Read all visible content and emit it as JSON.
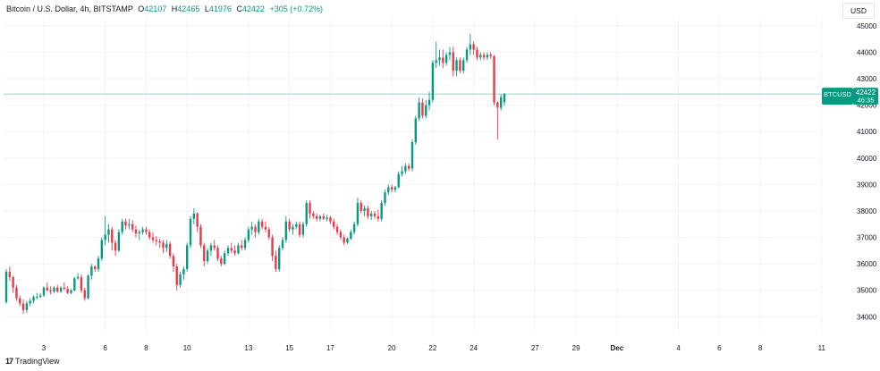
{
  "header": {
    "symbol_title": "Bitcoin / U.S. Dollar, 4h, BITSTAMP",
    "open_key": "O",
    "open_val": "42107",
    "high_key": "H",
    "high_val": "42465",
    "low_key": "L",
    "low_val": "41976",
    "close_key": "C",
    "close_val": "42422",
    "change": "+305 (+0.72%)",
    "currency_button": "USD"
  },
  "price_tag": {
    "symbol": "BTCUSD",
    "price": "42422",
    "countdown": "46:35"
  },
  "footer": {
    "brand": "TradingView",
    "logo_mark": "17"
  },
  "colors": {
    "up": "#089981",
    "down": "#f23645",
    "grid": "#f0f3fa",
    "axis_text": "#131722",
    "last_price_line": "#089981"
  },
  "chart_data": {
    "type": "candlestick",
    "title": "Bitcoin / U.S. Dollar, 4h, BITSTAMP",
    "ylim": [
      33400,
      45300
    ],
    "y_ticks": [
      34000,
      35000,
      36000,
      37000,
      38000,
      39000,
      40000,
      41000,
      42000,
      43000,
      44000,
      45000
    ],
    "x_ticks": [
      {
        "label": "3",
        "index": 11
      },
      {
        "label": "6",
        "index": 29
      },
      {
        "label": "8",
        "index": 41
      },
      {
        "label": "10",
        "index": 53
      },
      {
        "label": "13",
        "index": 71
      },
      {
        "label": "15",
        "index": 83
      },
      {
        "label": "17",
        "index": 95
      },
      {
        "label": "20",
        "index": 113
      },
      {
        "label": "22",
        "index": 125
      },
      {
        "label": "24",
        "index": 137
      },
      {
        "label": "27",
        "index": 155
      },
      {
        "label": "29",
        "index": 167
      },
      {
        "label": "Dec",
        "index": 179
      },
      {
        "label": "4",
        "index": 197
      },
      {
        "label": "6",
        "index": 209
      },
      {
        "label": "8",
        "index": 221
      },
      {
        "label": "11",
        "index": 239
      }
    ],
    "last_price": 42422,
    "candles": [
      [
        34550,
        35800,
        34500,
        35700
      ],
      [
        35700,
        35900,
        35350,
        35500
      ],
      [
        35500,
        35550,
        34900,
        35100
      ],
      [
        35100,
        35200,
        34600,
        34700
      ],
      [
        34700,
        34800,
        34400,
        34500
      ],
      [
        34500,
        34650,
        34100,
        34250
      ],
      [
        34250,
        34600,
        34150,
        34500
      ],
      [
        34500,
        34700,
        34400,
        34600
      ],
      [
        34600,
        34800,
        34500,
        34750
      ],
      [
        34750,
        34900,
        34650,
        34750
      ],
      [
        34750,
        34900,
        34700,
        34800
      ],
      [
        34800,
        35150,
        34750,
        35100
      ],
      [
        35100,
        35300,
        34950,
        35000
      ],
      [
        35000,
        35150,
        34850,
        34950
      ],
      [
        34950,
        35150,
        34900,
        35100
      ],
      [
        35100,
        35200,
        34900,
        34950
      ],
      [
        34950,
        35150,
        34900,
        35100
      ],
      [
        35100,
        35300,
        35000,
        35050
      ],
      [
        35050,
        35150,
        34850,
        34900
      ],
      [
        34900,
        35050,
        34850,
        35000
      ],
      [
        35000,
        35500,
        34950,
        35450
      ],
      [
        35450,
        35650,
        35400,
        35500
      ],
      [
        35500,
        35600,
        34900,
        35000
      ],
      [
        35000,
        35100,
        34600,
        34700
      ],
      [
        34700,
        35600,
        34650,
        35550
      ],
      [
        35550,
        36000,
        35400,
        35900
      ],
      [
        35900,
        35950,
        35700,
        35800
      ],
      [
        35800,
        36300,
        35700,
        36200
      ],
      [
        36200,
        37000,
        36100,
        36900
      ],
      [
        36900,
        37800,
        36700,
        37100
      ],
      [
        37100,
        37500,
        36800,
        37300
      ],
      [
        37300,
        37400,
        36500,
        36800
      ],
      [
        36800,
        36900,
        36300,
        36500
      ],
      [
        36500,
        37300,
        36450,
        37200
      ],
      [
        37200,
        37700,
        37100,
        37600
      ],
      [
        37600,
        37700,
        37300,
        37450
      ],
      [
        37450,
        37700,
        37300,
        37500
      ],
      [
        37500,
        37650,
        37200,
        37300
      ],
      [
        37300,
        37450,
        37000,
        37150
      ],
      [
        37150,
        37300,
        36900,
        37200
      ],
      [
        37200,
        37400,
        37100,
        37300
      ],
      [
        37300,
        37400,
        37100,
        37200
      ],
      [
        37200,
        37300,
        36900,
        37000
      ],
      [
        37000,
        37200,
        36800,
        36900
      ],
      [
        36900,
        37050,
        36700,
        36850
      ],
      [
        36850,
        36950,
        36600,
        36800
      ],
      [
        36800,
        36900,
        36400,
        36600
      ],
      [
        36600,
        36900,
        36450,
        36750
      ],
      [
        36750,
        36850,
        36200,
        36300
      ],
      [
        36300,
        36400,
        35700,
        35900
      ],
      [
        35900,
        36000,
        35000,
        35200
      ],
      [
        35200,
        35700,
        35100,
        35600
      ],
      [
        35600,
        35900,
        35400,
        35800
      ],
      [
        35800,
        36800,
        35700,
        36700
      ],
      [
        36700,
        37800,
        36600,
        37700
      ],
      [
        37700,
        38100,
        37500,
        37900
      ],
      [
        37900,
        37950,
        37200,
        37400
      ],
      [
        37400,
        37500,
        36600,
        36700
      ],
      [
        36700,
        36800,
        35900,
        36100
      ],
      [
        36100,
        36600,
        36000,
        36500
      ],
      [
        36500,
        36800,
        36300,
        36700
      ],
      [
        36700,
        36900,
        36500,
        36600
      ],
      [
        36600,
        36700,
        36100,
        36200
      ],
      [
        36200,
        36300,
        35900,
        36000
      ],
      [
        36000,
        36500,
        35950,
        36400
      ],
      [
        36400,
        36700,
        36300,
        36600
      ],
      [
        36600,
        36800,
        36400,
        36500
      ],
      [
        36500,
        36700,
        36300,
        36400
      ],
      [
        36400,
        36800,
        36350,
        36700
      ],
      [
        36700,
        36900,
        36500,
        36600
      ],
      [
        36600,
        37000,
        36500,
        36900
      ],
      [
        36900,
        37400,
        36800,
        37300
      ],
      [
        37300,
        37600,
        37100,
        37400
      ],
      [
        37400,
        37500,
        37000,
        37200
      ],
      [
        37200,
        37700,
        37100,
        37600
      ],
      [
        37600,
        37700,
        37300,
        37400
      ],
      [
        37400,
        37600,
        37200,
        37300
      ],
      [
        37300,
        37400,
        36900,
        37000
      ],
      [
        37000,
        37100,
        36100,
        36300
      ],
      [
        36300,
        36500,
        35700,
        35800
      ],
      [
        35800,
        36700,
        35700,
        36600
      ],
      [
        36600,
        37000,
        36500,
        36900
      ],
      [
        36900,
        37800,
        36800,
        37600
      ],
      [
        37600,
        37700,
        37200,
        37300
      ],
      [
        37300,
        37500,
        37100,
        37400
      ],
      [
        37400,
        37600,
        37300,
        37500
      ],
      [
        37500,
        37600,
        37000,
        37100
      ],
      [
        37100,
        37600,
        37000,
        37500
      ],
      [
        37500,
        38400,
        37400,
        38300
      ],
      [
        38300,
        38400,
        37700,
        37900
      ],
      [
        37900,
        38000,
        37700,
        37800
      ],
      [
        37800,
        37900,
        37600,
        37700
      ],
      [
        37700,
        37850,
        37600,
        37800
      ],
      [
        37800,
        37900,
        37650,
        37700
      ],
      [
        37700,
        37850,
        37600,
        37750
      ],
      [
        37750,
        37800,
        37500,
        37600
      ],
      [
        37600,
        37700,
        37300,
        37400
      ],
      [
        37400,
        37500,
        37100,
        37200
      ],
      [
        37200,
        37300,
        36900,
        37000
      ],
      [
        37000,
        37100,
        36700,
        36800
      ],
      [
        36800,
        37000,
        36750,
        36950
      ],
      [
        36950,
        37300,
        36900,
        37200
      ],
      [
        37200,
        37600,
        37100,
        37500
      ],
      [
        37500,
        38500,
        37400,
        38300
      ],
      [
        38300,
        38400,
        37900,
        38000
      ],
      [
        38000,
        38200,
        37800,
        38100
      ],
      [
        38100,
        38200,
        37700,
        37800
      ],
      [
        37800,
        38000,
        37650,
        37900
      ],
      [
        37900,
        38000,
        37700,
        37800
      ],
      [
        37800,
        38050,
        37600,
        37700
      ],
      [
        37700,
        38400,
        37600,
        38300
      ],
      [
        38300,
        38800,
        38200,
        38700
      ],
      [
        38700,
        39000,
        38600,
        38900
      ],
      [
        38900,
        39000,
        38700,
        38800
      ],
      [
        38800,
        38950,
        38700,
        38900
      ],
      [
        38900,
        39500,
        38850,
        39400
      ],
      [
        39400,
        39700,
        39300,
        39500
      ],
      [
        39500,
        39800,
        39400,
        39700
      ],
      [
        39700,
        39800,
        39500,
        39600
      ],
      [
        39600,
        40700,
        39500,
        40600
      ],
      [
        40600,
        41600,
        40500,
        41500
      ],
      [
        41500,
        42300,
        41400,
        42100
      ],
      [
        42100,
        42250,
        41500,
        41600
      ],
      [
        41600,
        42200,
        41500,
        42000
      ],
      [
        42000,
        42500,
        41800,
        42200
      ],
      [
        42200,
        43700,
        42100,
        43600
      ],
      [
        43600,
        44400,
        43400,
        43700
      ],
      [
        43700,
        44100,
        43500,
        43800
      ],
      [
        43800,
        44100,
        43400,
        43600
      ],
      [
        43600,
        44000,
        43500,
        43900
      ],
      [
        43900,
        44200,
        43700,
        44000
      ],
      [
        44000,
        44200,
        43100,
        43300
      ],
      [
        43300,
        43800,
        43100,
        43700
      ],
      [
        43700,
        43800,
        43200,
        43300
      ],
      [
        43300,
        43800,
        43200,
        43700
      ],
      [
        43700,
        44200,
        43600,
        44100
      ],
      [
        44100,
        44700,
        43900,
        44300
      ],
      [
        44300,
        44400,
        43900,
        44100
      ],
      [
        44100,
        44200,
        43700,
        43800
      ],
      [
        43800,
        44000,
        43700,
        43900
      ],
      [
        43900,
        44000,
        43700,
        43800
      ],
      [
        43800,
        44000,
        43700,
        43900
      ],
      [
        43900,
        44000,
        43750,
        43850
      ],
      [
        43850,
        43900,
        42000,
        42100
      ],
      [
        42100,
        42150,
        40700,
        41900
      ],
      [
        41900,
        42400,
        41800,
        42300
      ],
      [
        42107,
        42465,
        41976,
        42422
      ]
    ]
  }
}
